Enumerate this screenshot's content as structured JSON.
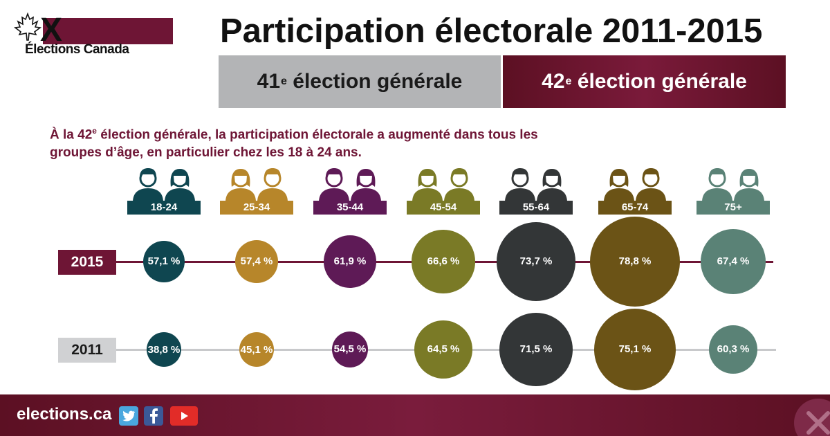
{
  "header": {
    "logo_text": "Élections Canada",
    "logo_mark": "X",
    "title": "Participation électorale 2011-2015"
  },
  "bands": {
    "b41": {
      "num": "41",
      "sup": "e",
      "text": " élection générale"
    },
    "b42": {
      "num": "42",
      "sup": "e",
      "text": " élection générale"
    }
  },
  "intro": {
    "part1": "À la 42",
    "sup": "e",
    "part2": " élection générale, la participation électorale a augmenté dans tous les groupes d’âge, en particulier chez les 18 à 24 ans."
  },
  "age_groups": [
    {
      "label": "18-24",
      "color": "#0f4650",
      "left": "x",
      "male": "young-man-icon",
      "female": "young-woman-icon"
    },
    {
      "label": "25-34",
      "color": "#b7862a",
      "left": "x",
      "male": "woman-long-hair-icon",
      "female": "man-glasses-icon"
    },
    {
      "label": "35-44",
      "color": "#5e1a56",
      "left": "x",
      "male": "bearded-man-icon",
      "female": "woman-icon"
    },
    {
      "label": "45-54",
      "color": "#7a7a26",
      "left": "x",
      "male": "man-glasses-beard-icon",
      "female": "woman-bob-icon"
    },
    {
      "label": "55-64",
      "color": "#333637",
      "left": "x",
      "male": "man-plaid-shirt-icon",
      "female": "man-icon"
    },
    {
      "label": "65-74",
      "color": "#6b5316",
      "left": "x",
      "male": "older-man-icon",
      "female": "older-woman-icon"
    },
    {
      "label": "75+",
      "color": "#5a8276",
      "left": "x",
      "male": "elderly-man-icon",
      "female": "elderly-woman-icon"
    }
  ],
  "years": {
    "y2015": "2015",
    "y2011": "2011"
  },
  "chart_data": {
    "type": "scatter",
    "categories": [
      "18-24",
      "25-34",
      "35-44",
      "45-54",
      "55-64",
      "65-74",
      "75+"
    ],
    "series": [
      {
        "name": "2015",
        "values": [
          57.1,
          57.4,
          61.9,
          66.6,
          73.7,
          78.8,
          67.4
        ],
        "labels": [
          "57,1 %",
          "57,4 %",
          "61,9 %",
          "66,6 %",
          "73,7 %",
          "78,8 %",
          "67,4 %"
        ]
      },
      {
        "name": "2011",
        "values": [
          38.8,
          45.1,
          54.5,
          64.5,
          71.5,
          75.1,
          60.3
        ],
        "labels": [
          "38,8 %",
          "45,1 %",
          "54,5 %",
          "64,5 %",
          "71,5 %",
          "75,1 %",
          "60,3 %"
        ]
      }
    ],
    "colors": [
      "#0f4650",
      "#b7862a",
      "#5e1a56",
      "#7a7a26",
      "#333637",
      "#6b5316",
      "#5a8276"
    ]
  },
  "footer": {
    "site": "elections.ca",
    "social": [
      "twitter-icon",
      "facebook-icon",
      "youtube-icon"
    ]
  }
}
